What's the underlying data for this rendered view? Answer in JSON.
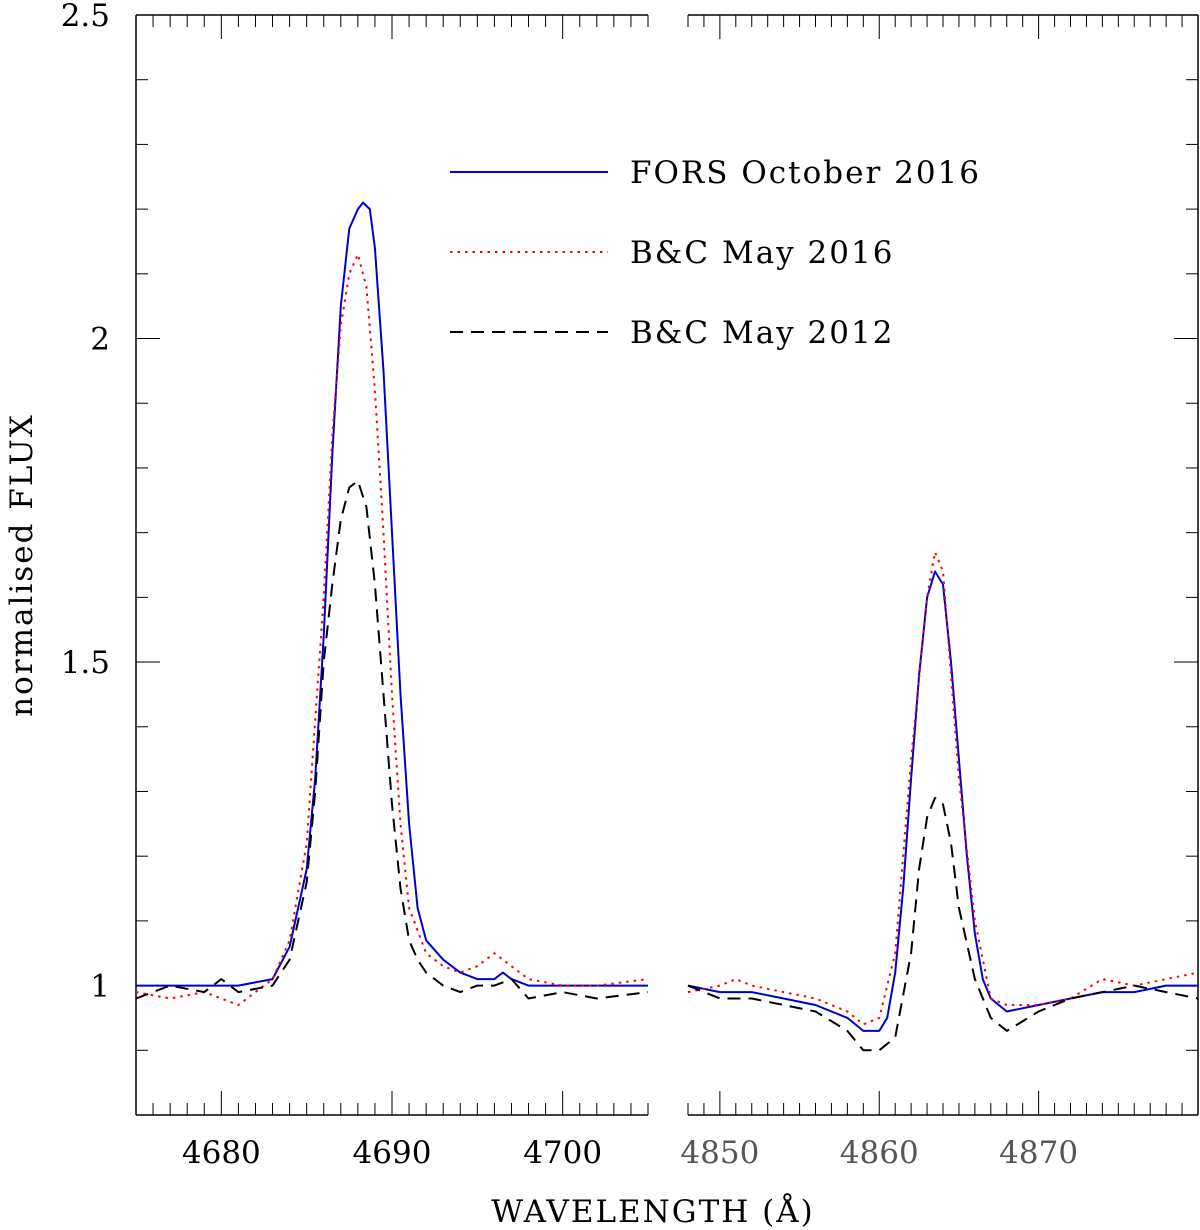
{
  "chart_data": {
    "type": "line",
    "ylabel": "normalised FLUX",
    "xlabel": "WAVELENGTH (Å)",
    "ylim": [
      0.8,
      2.5
    ],
    "yticks": [
      {
        "value": 1,
        "label": "1"
      },
      {
        "value": 1.5,
        "label": "1.5"
      },
      {
        "value": 2,
        "label": "2"
      },
      {
        "value": 2.5,
        "label": "2.5"
      }
    ],
    "grid": false,
    "legend_position": "top-right",
    "panels": [
      {
        "xlim": [
          4675,
          4705
        ],
        "xticks": [
          {
            "value": 4680,
            "label": "4680"
          },
          {
            "value": 4690,
            "label": "4690"
          },
          {
            "value": 4700,
            "label": "4700"
          }
        ],
        "series": [
          {
            "name": "FORS October 2016",
            "color": "#0000cc",
            "style": "solid",
            "x": [
              4675,
              4678,
              4681,
              4683,
              4684,
              4685,
              4685.5,
              4686,
              4686.5,
              4687,
              4687.5,
              4688,
              4688.3,
              4688.7,
              4689,
              4689.5,
              4690,
              4690.5,
              4691,
              4691.5,
              4692,
              4693,
              4694,
              4695,
              4696,
              4696.5,
              4697,
              4698,
              4700,
              4703,
              4705
            ],
            "y": [
              1.0,
              1.0,
              1.0,
              1.01,
              1.06,
              1.18,
              1.32,
              1.54,
              1.82,
              2.05,
              2.17,
              2.2,
              2.21,
              2.2,
              2.14,
              1.95,
              1.7,
              1.45,
              1.25,
              1.12,
              1.07,
              1.04,
              1.02,
              1.01,
              1.01,
              1.02,
              1.01,
              1.0,
              1.0,
              1.0,
              1.0
            ]
          },
          {
            "name": "B&C May 2016",
            "color": "#ff0000",
            "style": "dotted",
            "x": [
              4675,
              4677,
              4679,
              4681,
              4683,
              4684,
              4685,
              4686,
              4686.5,
              4687,
              4687.5,
              4688,
              4688.5,
              4689,
              4689.5,
              4690,
              4690.5,
              4691,
              4692,
              4693,
              4694,
              4695,
              4696,
              4697,
              4698,
              4700,
              4702,
              4705
            ],
            "y": [
              0.99,
              0.98,
              0.99,
              0.97,
              1.01,
              1.07,
              1.22,
              1.6,
              1.85,
              2.02,
              2.1,
              2.13,
              2.08,
              1.92,
              1.7,
              1.45,
              1.25,
              1.12,
              1.05,
              1.03,
              1.02,
              1.03,
              1.05,
              1.03,
              1.01,
              1.0,
              1.0,
              1.01
            ]
          },
          {
            "name": "B&C May 2012",
            "color": "#000000",
            "style": "dashed",
            "x": [
              4675,
              4677,
              4679,
              4680,
              4681,
              4683,
              4684,
              4685,
              4685.5,
              4686,
              4686.5,
              4687,
              4687.5,
              4688,
              4688.5,
              4689,
              4689.5,
              4690,
              4690.5,
              4691,
              4691.5,
              4692,
              4693,
              4694,
              4695,
              4696,
              4697,
              4698,
              4700,
              4702,
              4705
            ],
            "y": [
              0.98,
              1.0,
              0.99,
              1.01,
              0.99,
              1.0,
              1.04,
              1.16,
              1.3,
              1.5,
              1.62,
              1.72,
              1.77,
              1.78,
              1.74,
              1.62,
              1.45,
              1.28,
              1.15,
              1.07,
              1.04,
              1.02,
              1.0,
              0.99,
              1.0,
              1.0,
              1.01,
              0.98,
              0.99,
              0.98,
              0.99
            ]
          }
        ]
      },
      {
        "xlim": [
          4848,
          4880
        ],
        "xticks": [
          {
            "value": 4850,
            "label": "4850"
          },
          {
            "value": 4860,
            "label": "4860"
          },
          {
            "value": 4870,
            "label": "4870"
          }
        ],
        "series": [
          {
            "name": "FORS October 2016",
            "color": "#0000cc",
            "style": "solid",
            "x": [
              4848,
              4850,
              4852,
              4854,
              4856,
              4858,
              4859,
              4860,
              4860.5,
              4861,
              4861.5,
              4862,
              4862.5,
              4863,
              4863.5,
              4864,
              4864.5,
              4865,
              4865.5,
              4866,
              4866.5,
              4867,
              4868,
              4870,
              4872,
              4874,
              4876,
              4878,
              4880
            ],
            "y": [
              1.0,
              0.99,
              0.99,
              0.98,
              0.97,
              0.95,
              0.93,
              0.93,
              0.95,
              1.02,
              1.15,
              1.32,
              1.48,
              1.6,
              1.64,
              1.62,
              1.5,
              1.35,
              1.2,
              1.08,
              1.01,
              0.98,
              0.96,
              0.97,
              0.98,
              0.99,
              0.99,
              1.0,
              1.0
            ]
          },
          {
            "name": "B&C May 2016",
            "color": "#ff0000",
            "style": "dotted",
            "x": [
              4848,
              4850,
              4851,
              4852,
              4854,
              4856,
              4858,
              4859,
              4860,
              4861,
              4862,
              4863,
              4863.5,
              4864,
              4864.5,
              4865,
              4866,
              4867,
              4868,
              4870,
              4872,
              4874,
              4876,
              4878,
              4880
            ],
            "y": [
              0.99,
              1.0,
              1.01,
              1.0,
              0.99,
              0.98,
              0.96,
              0.94,
              0.95,
              1.05,
              1.35,
              1.6,
              1.67,
              1.64,
              1.48,
              1.32,
              1.1,
              0.98,
              0.97,
              0.97,
              0.98,
              1.01,
              1.0,
              1.01,
              1.02
            ]
          },
          {
            "name": "B&C May 2012",
            "color": "#000000",
            "style": "dashed",
            "x": [
              4848,
              4850,
              4852,
              4854,
              4856,
              4858,
              4859,
              4860,
              4861,
              4862,
              4862.5,
              4863,
              4863.5,
              4864,
              4864.5,
              4865,
              4866,
              4867,
              4868,
              4870,
              4872,
              4874,
              4876,
              4878,
              4880
            ],
            "y": [
              1.0,
              0.98,
              0.98,
              0.97,
              0.96,
              0.93,
              0.9,
              0.9,
              0.92,
              1.05,
              1.18,
              1.26,
              1.29,
              1.28,
              1.22,
              1.12,
              1.01,
              0.95,
              0.93,
              0.96,
              0.98,
              0.99,
              1.0,
              0.99,
              0.98
            ]
          }
        ]
      }
    ]
  }
}
